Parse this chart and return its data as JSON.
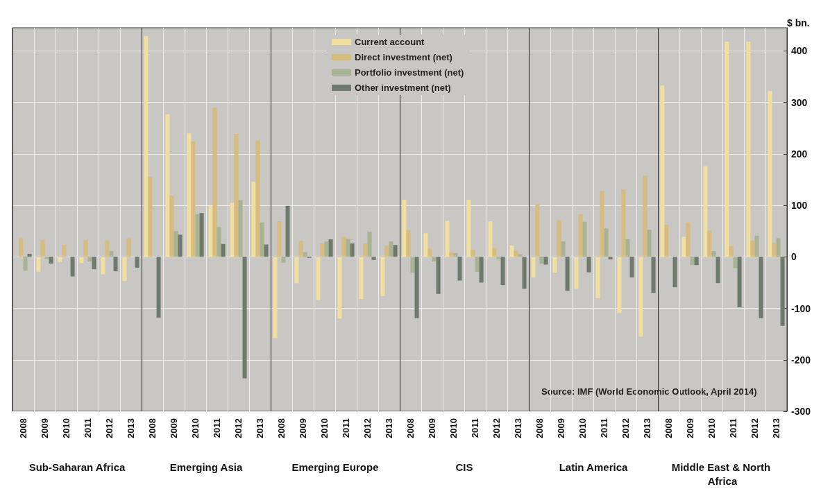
{
  "chart_data": {
    "type": "bar",
    "categories": [
      "2008",
      "2009",
      "2010",
      "2011",
      "2012",
      "2013",
      "2008",
      "2009",
      "2010",
      "2011",
      "2012",
      "2013",
      "2008",
      "2009",
      "2010",
      "2011",
      "2012",
      "2013",
      "2008",
      "2009",
      "2010",
      "2011",
      "2012",
      "2013",
      "2008",
      "2009",
      "2010",
      "2011",
      "2012",
      "2013",
      "2008",
      "2009",
      "2010",
      "2011",
      "2012",
      "2013"
    ],
    "series": [
      {
        "name": "Current account",
        "color": "#f0dfa0",
        "values": [
          null,
          -29,
          -10,
          -12,
          -34,
          -47,
          429,
          277,
          240,
          99,
          105,
          146,
          -158,
          -51,
          -84,
          -120,
          -82,
          -76,
          111,
          46,
          70,
          111,
          69,
          22,
          -40,
          -31,
          -62,
          -80,
          -109,
          -155,
          333,
          39,
          176,
          418,
          418,
          322
        ]
      },
      {
        "name": "Direct investment (net)",
        "color": "#d8bb7e",
        "values": [
          36,
          33,
          23,
          33,
          32,
          36,
          155,
          119,
          224,
          290,
          239,
          226,
          69,
          31,
          26,
          39,
          26,
          22,
          52,
          16,
          9,
          14,
          17,
          12,
          102,
          71,
          83,
          128,
          131,
          158,
          62,
          67,
          51,
          21,
          32,
          27
        ]
      },
      {
        "name": "Portfolio investment (net)",
        "color": "#a8b393",
        "values": [
          -27,
          -4,
          null,
          -9,
          11,
          null,
          null,
          50,
          83,
          58,
          110,
          67,
          -11,
          9,
          30,
          35,
          49,
          30,
          -31,
          -9,
          7,
          -29,
          -5,
          5,
          -13,
          30,
          68,
          55,
          34,
          53,
          null,
          -16,
          11,
          -22,
          41,
          36
        ]
      },
      {
        "name": "Other investment (net)",
        "color": "#6d7a6c",
        "values": [
          6,
          -13,
          -38,
          -24,
          -28,
          -21,
          -118,
          43,
          85,
          25,
          -236,
          24,
          99,
          -2,
          34,
          26,
          -6,
          23,
          -119,
          -72,
          -46,
          -50,
          -55,
          -62,
          -15,
          -66,
          -30,
          -5,
          -40,
          -70,
          -59,
          -16,
          -51,
          -98,
          -119,
          -134
        ]
      }
    ],
    "ylabel": "$ bn.",
    "ylim": [
      -300,
      445
    ],
    "yticks": [
      -300,
      -200,
      -100,
      0,
      100,
      200,
      300,
      400
    ],
    "grid": true,
    "legend": "top",
    "annotations": [
      "Sub-Saharan Africa",
      "Emerging Asia",
      "Emerging Europe",
      "CIS",
      "Latin America",
      "Middle East & North Africa",
      "Source: IMF (World Economic Outlook, April 2014)"
    ]
  }
}
